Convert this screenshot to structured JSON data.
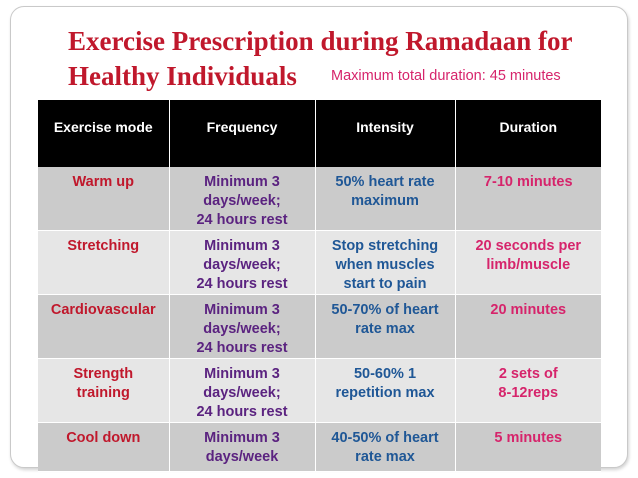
{
  "slide": {
    "title_line1": "Exercise Prescription during Ramadaan for",
    "title_line2": "Healthy Individuals",
    "subtitle": "Maximum total duration: 45 minutes"
  },
  "table": {
    "headers": [
      "Exercise mode",
      "Frequency",
      "Intensity",
      "Duration"
    ],
    "rows": [
      {
        "mode": [
          "Warm up"
        ],
        "frequency": [
          "Minimum 3",
          "days/week;",
          "24 hours rest"
        ],
        "intensity": [
          "50% heart rate",
          "maximum"
        ],
        "duration": [
          "7-10 minutes"
        ]
      },
      {
        "mode": [
          "Stretching"
        ],
        "frequency": [
          "Minimum 3",
          "days/week;",
          "24 hours rest"
        ],
        "intensity": [
          "Stop stretching",
          "when muscles",
          "start to pain"
        ],
        "duration": [
          "20 seconds per",
          "limb/muscle"
        ]
      },
      {
        "mode": [
          "Cardiovascular"
        ],
        "frequency": [
          "Minimum 3",
          "days/week;",
          "24 hours rest"
        ],
        "intensity": [
          "50-70% of heart",
          "rate max"
        ],
        "duration": [
          "20 minutes"
        ]
      },
      {
        "mode": [
          "Strength",
          "training"
        ],
        "frequency": [
          "Minimum 3",
          "days/week;",
          "24 hours rest"
        ],
        "intensity": [
          "50-60% 1",
          "repetition max"
        ],
        "duration": [
          "2 sets of",
          "8-12reps"
        ]
      },
      {
        "mode": [
          "Cool down"
        ],
        "frequency": [
          "Minimum 3",
          "days/week"
        ],
        "intensity": [
          "40-50% of heart",
          "rate max"
        ],
        "duration": [
          "5 minutes"
        ]
      }
    ]
  },
  "colors": {
    "title": "#c0182c",
    "subtitle": "#d6246b",
    "mode": "#c0182c",
    "frequency": "#5b2380",
    "intensity": "#1f5796",
    "duration": "#d6246b",
    "header_bg": "#000000",
    "row_dark": "#cbcbcb",
    "row_light": "#e6e6e6"
  }
}
